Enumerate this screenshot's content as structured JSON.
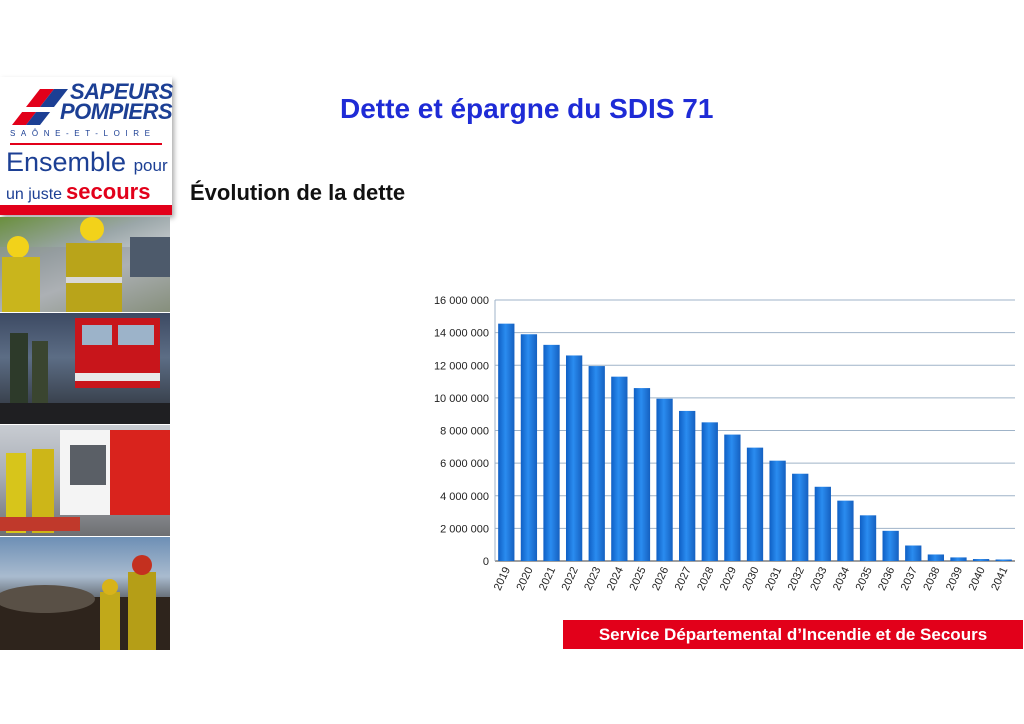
{
  "logo": {
    "line1": "SAPEURS",
    "line2": "POMPIERS",
    "subtitle": "SAÔNE-ET-LOIRE",
    "slogan_a": "Ensemble",
    "slogan_b": "pour",
    "slogan_c": "un juste",
    "slogan_d": "secours"
  },
  "header": {
    "title": "Dette et épargne du SDIS 71",
    "subtitle": "Évolution de la dette"
  },
  "footer": {
    "banner": "Service Départemental d’Incendie et de Secours"
  },
  "colors": {
    "title_blue": "#1e2bd6",
    "brand_red": "#e2001a",
    "brand_blue": "#1c3f94",
    "bar_blue": "#1a78e0"
  },
  "chart_data": {
    "type": "bar",
    "title": "",
    "xlabel": "",
    "ylabel": "",
    "categories": [
      "2019",
      "2020",
      "2021",
      "2022",
      "2023",
      "2024",
      "2025",
      "2026",
      "2027",
      "2028",
      "2029",
      "2030",
      "2031",
      "2032",
      "2033",
      "2034",
      "2035",
      "2036",
      "2037",
      "2038",
      "2039",
      "2040",
      "2041"
    ],
    "values": [
      14550000,
      13900000,
      13250000,
      12600000,
      11950000,
      11300000,
      10600000,
      9950000,
      9200000,
      8500000,
      7750000,
      6950000,
      6150000,
      5350000,
      4550000,
      3700000,
      2800000,
      1850000,
      950000,
      400000,
      220000,
      120000,
      0
    ],
    "ylim": [
      0,
      16000000
    ],
    "yticks": [
      0,
      2000000,
      4000000,
      6000000,
      8000000,
      10000000,
      12000000,
      14000000,
      16000000
    ],
    "ytick_labels": [
      "0",
      "2 000 000",
      "4 000 000",
      "6 000 000",
      "8 000 000",
      "10 000 000",
      "12 000 000",
      "14 000 000",
      "16 000 000"
    ],
    "grid": true,
    "legend": "none"
  }
}
